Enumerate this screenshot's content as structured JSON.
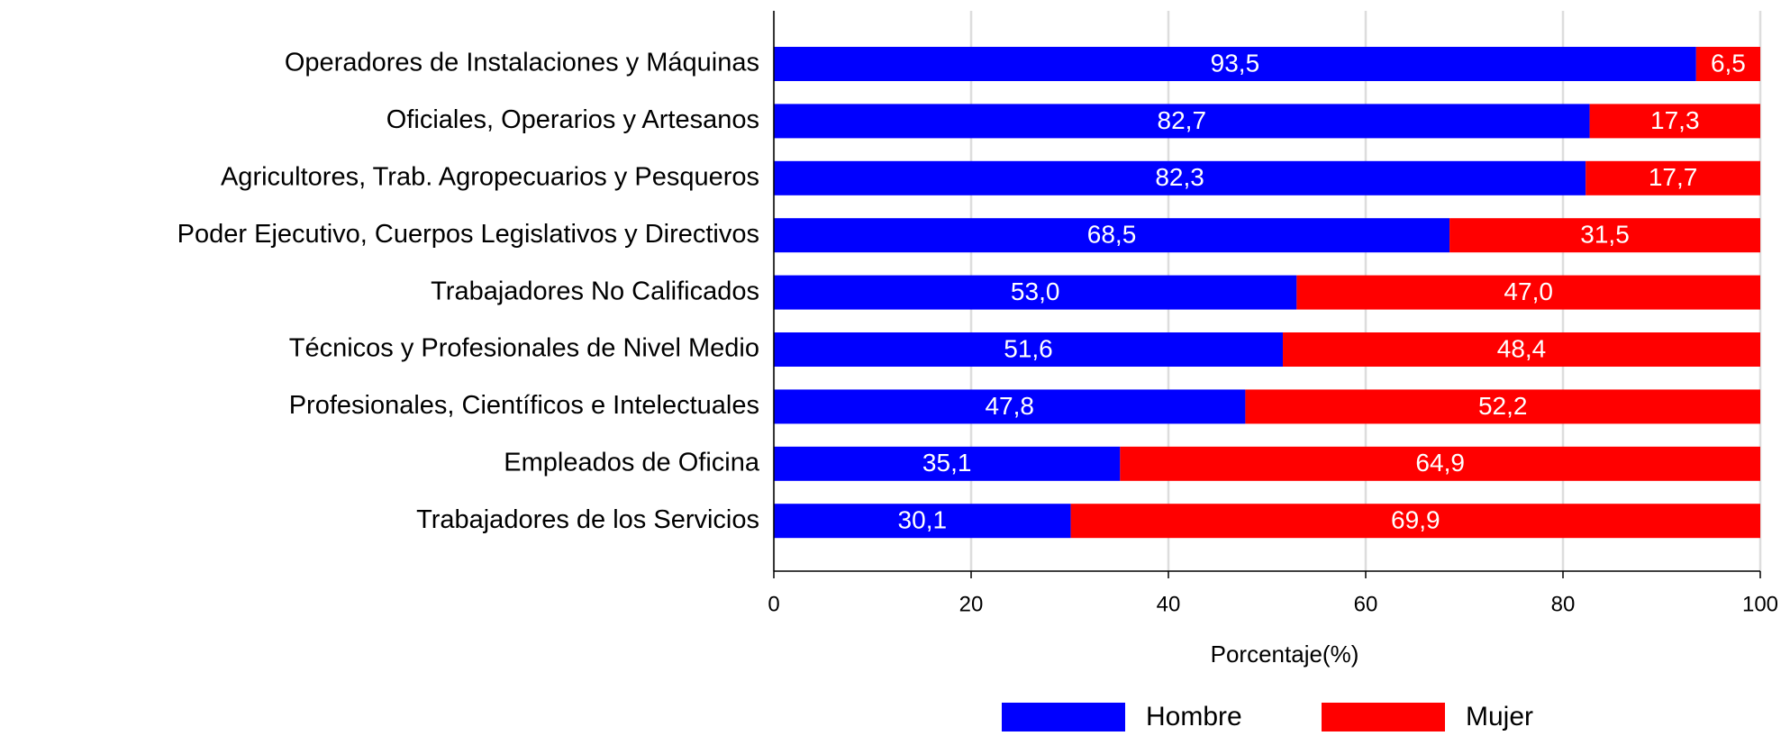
{
  "chart_data": {
    "type": "stacked_barh",
    "xlabel": "Porcentaje(%)",
    "categories": [
      "Operadores de Instalaciones y Máquinas",
      "Oficiales, Operarios y Artesanos",
      "Agricultores, Trab. Agropecuarios y Pesqueros",
      "Poder Ejecutivo, Cuerpos Legislativos y Directivos",
      "Trabajadores No Calificados",
      "Técnicos y Profesionales de Nivel Medio",
      "Profesionales, Científicos e Intelectuales",
      "Empleados de Oficina",
      "Trabajadores de los Servicios"
    ],
    "series": [
      {
        "name": "Hombre",
        "color": "#0000ff",
        "values": [
          93.5,
          82.7,
          82.3,
          68.5,
          53.0,
          51.6,
          47.8,
          35.1,
          30.1
        ],
        "value_labels": [
          "93,5",
          "82,7",
          "82,3",
          "68,5",
          "53,0",
          "51,6",
          "47,8",
          "35,1",
          "30,1"
        ]
      },
      {
        "name": "Mujer",
        "color": "#ff0000",
        "values": [
          6.5,
          17.3,
          17.7,
          31.5,
          47.0,
          48.4,
          52.2,
          64.9,
          69.9
        ],
        "value_labels": [
          "6,5",
          "17,3",
          "17,7",
          "31,5",
          "47,0",
          "48,4",
          "52,2",
          "64,9",
          "69,9"
        ]
      }
    ],
    "xlim": [
      0,
      100
    ],
    "xticks": [
      0,
      20,
      40,
      60,
      80,
      100
    ],
    "grid": true,
    "legend": "bottom"
  }
}
